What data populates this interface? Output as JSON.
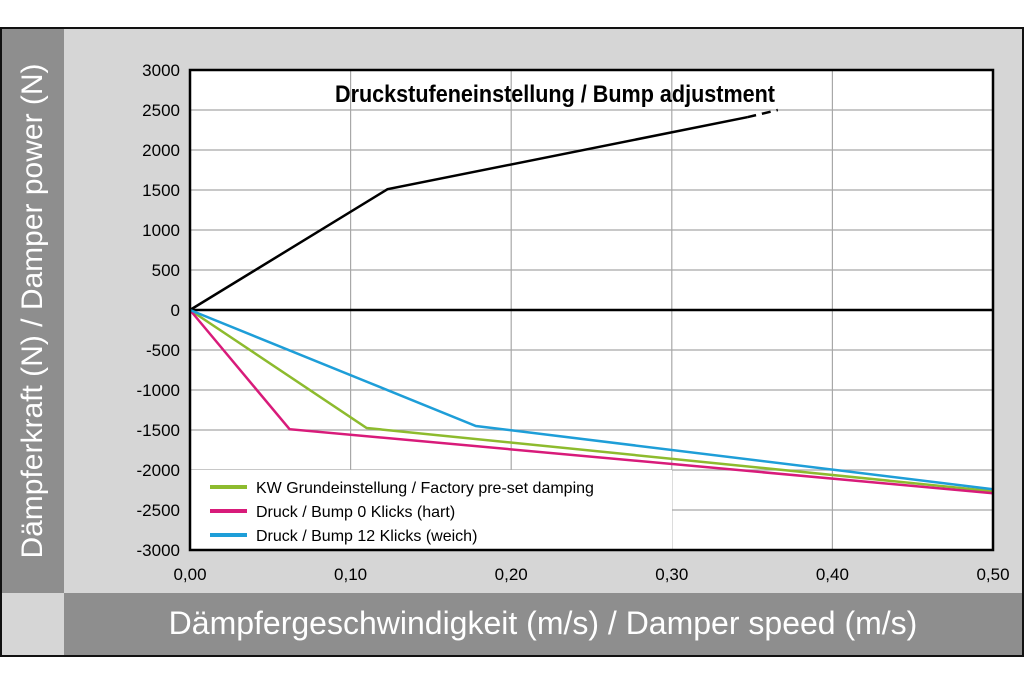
{
  "chart_data": {
    "type": "line",
    "title": "Druckstufeneinstellung / Bump adjustment",
    "xlabel": "Dämpfergeschwindigkeit (m/s) / Damper speed (m/s)",
    "ylabel": "Dämpferkraft (N) / Damper power (N)",
    "xlim": [
      0,
      0.5
    ],
    "ylim": [
      -3000,
      3000
    ],
    "xticks": [
      "0,00",
      "0,10",
      "0,20",
      "0,30",
      "0,40",
      "0,50"
    ],
    "xtick_values": [
      0,
      0.1,
      0.2,
      0.3,
      0.4,
      0.5
    ],
    "yticks": [
      "3000",
      "2500",
      "2000",
      "1500",
      "1000",
      "500",
      "0",
      "-500",
      "-1000",
      "-1500",
      "-2000",
      "-2500",
      "-3000"
    ],
    "ytick_values": [
      3000,
      2500,
      2000,
      1500,
      1000,
      500,
      0,
      -500,
      -1000,
      -1500,
      -2000,
      -2500,
      -3000
    ],
    "grid": true,
    "legend_placement": "bottom-left",
    "rebound_curve": {
      "color": "#000000",
      "points": [
        [
          0,
          0
        ],
        [
          0.123,
          1510
        ],
        [
          0.347,
          2410
        ]
      ],
      "dashed_extension": [
        [
          0.347,
          2410
        ],
        [
          0.366,
          2500
        ]
      ]
    },
    "series": [
      {
        "name": "KW Grundeinstellung / Factory pre-set damping",
        "color": "#8dbb2e",
        "points": [
          [
            0,
            0
          ],
          [
            0.11,
            -1475
          ],
          [
            0.5,
            -2265
          ]
        ]
      },
      {
        "name": "Druck / Bump 0 Klicks (hart)",
        "color": "#d81b7a",
        "points": [
          [
            0,
            0
          ],
          [
            0.062,
            -1490
          ],
          [
            0.5,
            -2290
          ]
        ]
      },
      {
        "name": "Druck / Bump 12 Klicks (weich)",
        "color": "#1e9ed8",
        "points": [
          [
            0,
            0
          ],
          [
            0.178,
            -1450
          ],
          [
            0.5,
            -2240
          ]
        ]
      }
    ]
  }
}
